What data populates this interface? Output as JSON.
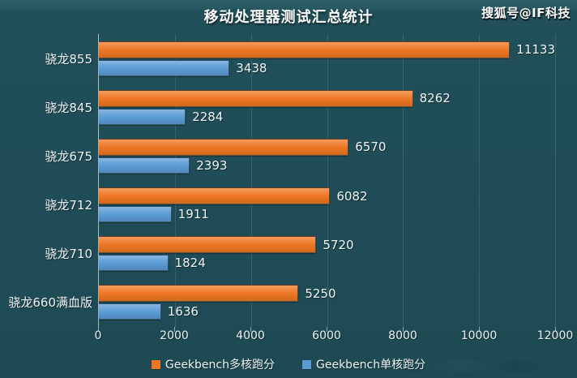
{
  "title": "移动处理器测试汇总统计",
  "watermark": "搜狐号@IF科技",
  "colors": {
    "background": "#1f4c56",
    "background_top_edge": "#2c6069",
    "gridline": "#33616b",
    "axis_line": "#a9bcbf",
    "text": "#eef3f4",
    "multi_core_bar": "#ed7623",
    "single_core_bar": "#5b9bd5"
  },
  "chart_data": {
    "type": "bar",
    "orientation": "horizontal",
    "title": "移动处理器测试汇总统计",
    "categories": [
      "骁龙855",
      "骁龙845",
      "骁龙675",
      "骁龙712",
      "骁龙710",
      "骁龙660满血版"
    ],
    "series": [
      {
        "name": "Geekbench多核跑分",
        "color": "#ed7623",
        "values": [
          11133,
          8262,
          6570,
          6082,
          5720,
          5250
        ]
      },
      {
        "name": "Geekbench单核跑分",
        "color": "#5b9bd5",
        "values": [
          3438,
          2284,
          2393,
          1911,
          1824,
          1636
        ]
      }
    ],
    "value_labels": [
      [
        "11133",
        "8262",
        "6570",
        "6082",
        "5720",
        "5250"
      ],
      [
        "3438",
        "2284",
        "2393",
        "1911",
        "1824",
        "1636"
      ]
    ],
    "xlim": [
      0,
      12000
    ],
    "x_ticks": [
      0,
      2000,
      4000,
      6000,
      8000,
      10000,
      12000
    ],
    "x_tick_labels": [
      "0",
      "2000",
      "4000",
      "6000",
      "8000",
      "10000",
      "12000"
    ],
    "grid": "vertical-gridlines",
    "legend_position": "bottom-center"
  }
}
